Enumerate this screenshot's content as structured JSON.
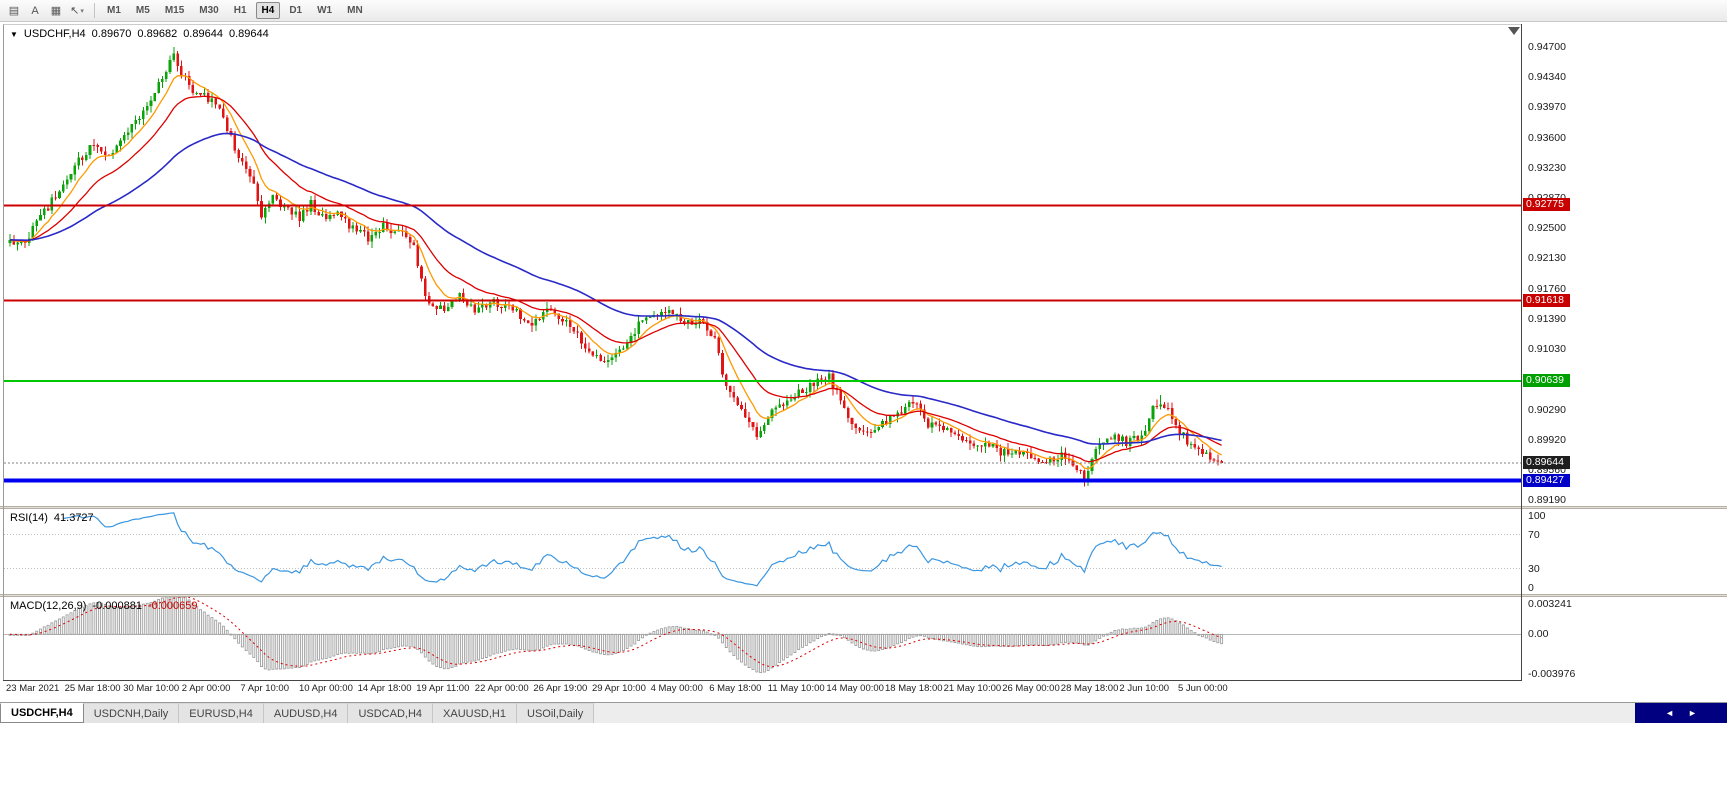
{
  "toolbar": {
    "icons": [
      {
        "name": "chart-list-icon",
        "glyph": "▤"
      },
      {
        "name": "text-annotation-icon",
        "glyph": "A"
      },
      {
        "name": "chart-window-icon",
        "glyph": "▦"
      },
      {
        "name": "cursor-tool-icon",
        "glyph": "↖",
        "caret": "▾"
      }
    ],
    "timeframes": [
      {
        "label": "M1",
        "active": false
      },
      {
        "label": "M5",
        "active": false
      },
      {
        "label": "M15",
        "active": false
      },
      {
        "label": "M30",
        "active": false
      },
      {
        "label": "H1",
        "active": false
      },
      {
        "label": "H4",
        "active": true
      },
      {
        "label": "D1",
        "active": false
      },
      {
        "label": "W1",
        "active": false
      },
      {
        "label": "MN",
        "active": false
      }
    ]
  },
  "chart": {
    "title": {
      "dropdown_glyph": "▼",
      "symbol": "USDCHF,H4",
      "open": "0.89670",
      "high": "0.89682",
      "low": "0.89644",
      "close": "0.89644"
    },
    "grid_labels": [
      "0.94700",
      "0.94340",
      "0.93970",
      "0.93600",
      "0.93230",
      "0.92870",
      "0.92500",
      "0.92130",
      "0.91760",
      "0.91390",
      "0.91030",
      "0.90660",
      "0.90290",
      "0.89920",
      "0.89560",
      "0.89190"
    ],
    "tags": [
      {
        "text": "0.92775",
        "price": 0.92775,
        "bg": "#c80000"
      },
      {
        "text": "0.91618",
        "price": 0.91618,
        "bg": "#c80000"
      },
      {
        "text": "0.90639",
        "price": 0.90639,
        "bg": "#00a000"
      },
      {
        "text": "0.89644",
        "price": 0.89644,
        "bg": "#1f1f1f"
      },
      {
        "text": "0.89427",
        "price": 0.89427,
        "bg": "#0000c8"
      }
    ],
    "hlines": [
      {
        "price": 0.92775,
        "color": "#cc0000",
        "width": 2
      },
      {
        "price": 0.91618,
        "color": "#cc0000",
        "width": 2
      },
      {
        "price": 0.90639,
        "color": "#00c800",
        "width": 2
      },
      {
        "price": 0.89427,
        "color": "#0000f0",
        "width": 4
      }
    ],
    "current_price": {
      "price": 0.89644,
      "color": "#808080"
    },
    "date_labels": [
      "23 Mar 2021",
      "25 Mar 18:00",
      "30 Mar 10:00",
      "2 Apr 00:00",
      "7 Apr 10:00",
      "10 Apr 00:00",
      "14 Apr 18:00",
      "19 Apr 11:00",
      "22 Apr 00:00",
      "26 Apr 19:00",
      "29 Apr 10:00",
      "4 May 00:00",
      "6 May 18:00",
      "11 May 10:00",
      "14 May 00:00",
      "18 May 18:00",
      "21 May 10:00",
      "26 May 00:00",
      "28 May 18:00",
      "2 Jun 10:00",
      "5 Jun 00:00"
    ],
    "colors": {
      "up": "#0aa30a",
      "down": "#e01414",
      "ma_fast": "#ff9900",
      "ma_mid": "#dd0000",
      "ma_slow": "#2929c8"
    }
  },
  "chart_data": {
    "type": "candlestick",
    "symbol": "USDCHF",
    "timeframe": "H4",
    "bar_count": 319,
    "ylim": [
      0.8912,
      0.9498
    ],
    "moving_average_periods": {
      "fast": 8,
      "mid": 20,
      "slow": 55
    },
    "price_path_anchors": [
      [
        0,
        0.9238
      ],
      [
        3,
        0.9228
      ],
      [
        8,
        0.9265
      ],
      [
        14,
        0.93
      ],
      [
        18,
        0.933
      ],
      [
        22,
        0.9352
      ],
      [
        26,
        0.934
      ],
      [
        30,
        0.9365
      ],
      [
        34,
        0.9385
      ],
      [
        38,
        0.9415
      ],
      [
        41,
        0.9445
      ],
      [
        43,
        0.9462
      ],
      [
        45,
        0.944
      ],
      [
        48,
        0.9418
      ],
      [
        52,
        0.9408
      ],
      [
        55,
        0.9398
      ],
      [
        58,
        0.936
      ],
      [
        61,
        0.933
      ],
      [
        64,
        0.9305
      ],
      [
        66,
        0.9268
      ],
      [
        69,
        0.9285
      ],
      [
        73,
        0.9272
      ],
      [
        76,
        0.9262
      ],
      [
        79,
        0.928
      ],
      [
        82,
        0.9262
      ],
      [
        86,
        0.927
      ],
      [
        90,
        0.9248
      ],
      [
        94,
        0.9238
      ],
      [
        98,
        0.9252
      ],
      [
        102,
        0.9246
      ],
      [
        106,
        0.9232
      ],
      [
        108,
        0.9185
      ],
      [
        110,
        0.9158
      ],
      [
        114,
        0.9152
      ],
      [
        118,
        0.9168
      ],
      [
        122,
        0.9152
      ],
      [
        126,
        0.916
      ],
      [
        130,
        0.9155
      ],
      [
        133,
        0.9147
      ],
      [
        137,
        0.9136
      ],
      [
        141,
        0.915
      ],
      [
        145,
        0.9142
      ],
      [
        149,
        0.912
      ],
      [
        153,
        0.9096
      ],
      [
        157,
        0.909
      ],
      [
        161,
        0.9102
      ],
      [
        165,
        0.9132
      ],
      [
        169,
        0.9146
      ],
      [
        173,
        0.9152
      ],
      [
        177,
        0.9132
      ],
      [
        181,
        0.9136
      ],
      [
        185,
        0.912
      ],
      [
        187,
        0.9072
      ],
      [
        190,
        0.9042
      ],
      [
        194,
        0.9012
      ],
      [
        196,
        0.8996
      ],
      [
        200,
        0.9026
      ],
      [
        204,
        0.9042
      ],
      [
        208,
        0.9052
      ],
      [
        212,
        0.9062
      ],
      [
        215,
        0.9068
      ],
      [
        219,
        0.9032
      ],
      [
        222,
        0.9002
      ],
      [
        226,
        0.9006
      ],
      [
        229,
        0.9016
      ],
      [
        233,
        0.9022
      ],
      [
        237,
        0.9042
      ],
      [
        241,
        0.9012
      ],
      [
        245,
        0.9006
      ],
      [
        249,
        0.8996
      ],
      [
        253,
        0.8986
      ],
      [
        257,
        0.8986
      ],
      [
        260,
        0.8976
      ],
      [
        264,
        0.8976
      ],
      [
        268,
        0.897
      ],
      [
        272,
        0.8962
      ],
      [
        276,
        0.8976
      ],
      [
        280,
        0.8956
      ],
      [
        282,
        0.8946
      ],
      [
        285,
        0.8986
      ],
      [
        289,
        0.8996
      ],
      [
        293,
        0.899
      ],
      [
        297,
        0.8996
      ],
      [
        300,
        0.903
      ],
      [
        302,
        0.904
      ],
      [
        305,
        0.902
      ],
      [
        309,
        0.899
      ],
      [
        313,
        0.8976
      ],
      [
        316,
        0.8967
      ],
      [
        318,
        0.89644
      ]
    ],
    "spikes": [
      {
        "bar": 43,
        "high": 0.947
      },
      {
        "bar": 282,
        "low": 0.8939
      },
      {
        "bar": 302,
        "high": 0.9047
      }
    ],
    "last_ohlc": {
      "open": 0.8967,
      "high": 0.89682,
      "low": 0.8964,
      "close": 0.89644
    }
  },
  "rsi": {
    "name": "RSI(14)",
    "value": "41.3727",
    "period": 14,
    "color": "#3b96e0",
    "levels": [
      70,
      30
    ],
    "axis_labels": [
      {
        "t": "100",
        "v": 100
      },
      {
        "t": "70",
        "v": 70
      },
      {
        "t": "30",
        "v": 30
      },
      {
        "t": "0",
        "v": 0
      }
    ]
  },
  "macd": {
    "name": "MACD(12,26,9)",
    "value_main": "-0.000881",
    "value_signal": "-0.000659",
    "fast": 12,
    "slow": 26,
    "signal": 9,
    "range": [
      -0.003976,
      0.003241
    ],
    "hist_color": "#a0a0a0",
    "signal_color": "#dd0000",
    "axis_labels": [
      {
        "t": "0.003241",
        "pos": "top"
      },
      {
        "t": "0.00",
        "pos": "zero"
      },
      {
        "t": "-0.003976",
        "pos": "bottom"
      }
    ]
  },
  "tabs": {
    "items": [
      {
        "label": "USDCHF,H4",
        "active": true
      },
      {
        "label": "USDCNH,Daily",
        "active": false
      },
      {
        "label": "EURUSD,H4",
        "active": false
      },
      {
        "label": "AUDUSD,H4",
        "active": false
      },
      {
        "label": "USDCAD,H4",
        "active": false
      },
      {
        "label": "XAUUSD,H1",
        "active": false
      },
      {
        "label": "USOil,Daily",
        "active": false
      }
    ],
    "nav_left": "◄",
    "nav_right": "►"
  }
}
